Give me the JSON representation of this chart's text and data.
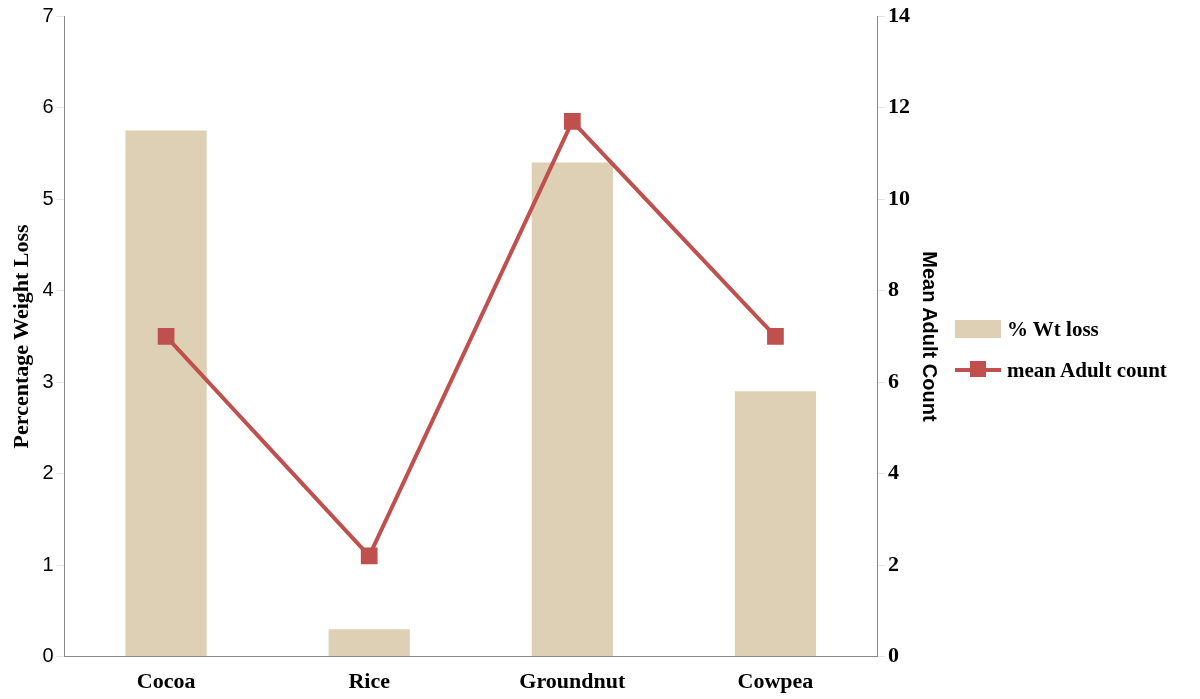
{
  "chart_data": {
    "type": "bar",
    "categories": [
      "Cocoa",
      "Rice",
      "Groundnut",
      "Cowpea"
    ],
    "ylabel": "Percentage Weight Loss",
    "y2label": "Mean Adult Count",
    "ylim": [
      0,
      7
    ],
    "yticks": [
      0,
      1,
      2,
      3,
      4,
      5,
      6,
      7
    ],
    "y2lim": [
      0,
      14
    ],
    "y2ticks": [
      0,
      2,
      4,
      6,
      8,
      10,
      12,
      14
    ],
    "series": [
      {
        "name": "% Wt loss",
        "color": "#ddd0b4",
        "values": [
          5.75,
          0.3,
          5.4,
          2.9
        ]
      },
      {
        "name": "mean Adult count",
        "type": "line",
        "axis": "y2",
        "color": "#c0504d",
        "values": [
          7,
          2.2,
          11.7,
          7
        ]
      }
    ],
    "grid": false,
    "legend": "right",
    "marker": "square",
    "line_style": "solid"
  }
}
